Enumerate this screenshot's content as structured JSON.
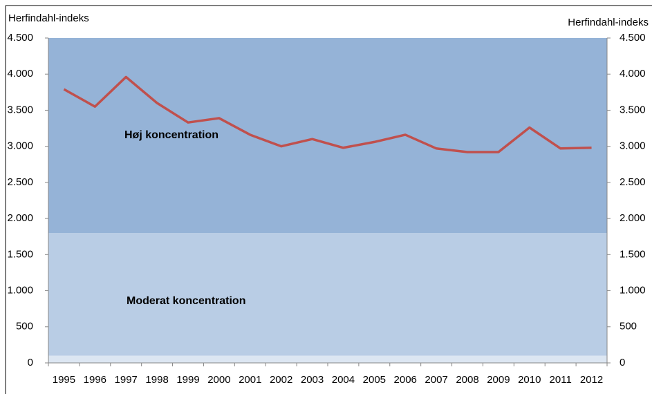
{
  "chart_data": {
    "type": "line",
    "y_label": "Herfindahl-indeks",
    "y2_label": "Herfindahl-indeks",
    "categories": [
      "1995",
      "1996",
      "1997",
      "1998",
      "1999",
      "2000",
      "2001",
      "2002",
      "2003",
      "2004",
      "2005",
      "2006",
      "2007",
      "2008",
      "2009",
      "2010",
      "2011",
      "2012"
    ],
    "series": [
      {
        "color": "#c0504d",
        "values": [
          3790,
          3550,
          3960,
          3600,
          3330,
          3390,
          3160,
          3000,
          3100,
          2980,
          3060,
          3160,
          2970,
          2920,
          2920,
          3260,
          2970,
          2980
        ]
      }
    ],
    "bands": [
      {
        "label": "Høj koncentration",
        "from": 1800,
        "to": 4500,
        "color": "#95b3d7"
      },
      {
        "label": "Moderat koncentration",
        "from": 100,
        "to": 1800,
        "color": "#b9cde5"
      },
      {
        "from": 0,
        "to": 100,
        "color": "#dce6f2"
      }
    ],
    "ylim": [
      0,
      4500
    ],
    "yticks": [
      0,
      500,
      {
        "value": 1000,
        "label": "1.000"
      },
      {
        "value": 1500,
        "label": "1.500"
      },
      {
        "value": 2000,
        "label": "2.000"
      },
      {
        "value": 2500,
        "label": "2.500"
      },
      {
        "value": 3000,
        "label": "3.000"
      },
      {
        "value": 3500,
        "label": "3.500"
      },
      {
        "value": 4000,
        "label": "4.000"
      },
      {
        "value": 4500,
        "label": "4.500"
      }
    ],
    "y2lim": [
      0,
      4500
    ],
    "y2ticks": [
      0,
      500,
      {
        "value": 1000,
        "label": "1.000"
      },
      {
        "value": 1500,
        "label": "1.500"
      },
      {
        "value": 2000,
        "label": "2.000"
      },
      {
        "value": 2500,
        "label": "2.500"
      },
      {
        "value": 3000,
        "label": "3.000"
      },
      {
        "value": 3500,
        "label": "3.500"
      },
      {
        "value": 4000,
        "label": "4.000"
      },
      {
        "value": 4500,
        "label": "4.500"
      }
    ]
  }
}
